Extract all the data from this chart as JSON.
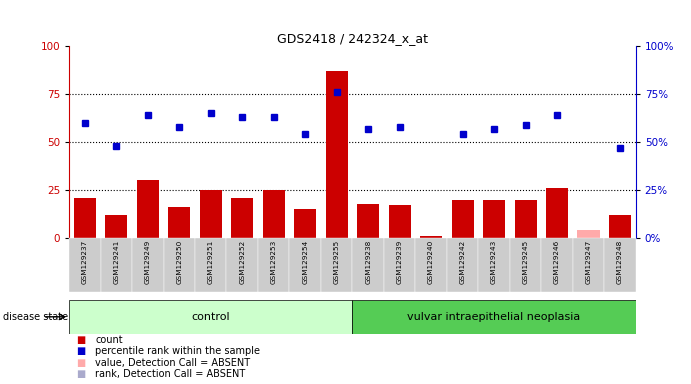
{
  "title": "GDS2418 / 242324_x_at",
  "samples": [
    "GSM129237",
    "GSM129241",
    "GSM129249",
    "GSM129250",
    "GSM129251",
    "GSM129252",
    "GSM129253",
    "GSM129254",
    "GSM129255",
    "GSM129238",
    "GSM129239",
    "GSM129240",
    "GSM129242",
    "GSM129243",
    "GSM129245",
    "GSM129246",
    "GSM129247",
    "GSM129248"
  ],
  "counts": [
    21,
    12,
    30,
    16,
    25,
    21,
    25,
    15,
    87,
    18,
    17,
    1,
    20,
    20,
    20,
    26,
    4,
    12
  ],
  "percentile_ranks": [
    60,
    48,
    64,
    58,
    65,
    63,
    63,
    54,
    76,
    57,
    58,
    null,
    54,
    57,
    59,
    64,
    null,
    47
  ],
  "absent_count_idx": [
    16
  ],
  "absent_rank_idx": [
    11,
    16
  ],
  "control_count": 9,
  "disease_count": 9,
  "control_label": "control",
  "disease_label": "vulvar intraepithelial neoplasia",
  "group_label": "disease state",
  "bar_color": "#cc0000",
  "dot_color": "#0000cc",
  "absent_bar_color": "#ffaaaa",
  "absent_dot_color": "#aaaacc",
  "bg_color_control": "#ccffcc",
  "bg_color_disease": "#55cc55",
  "tick_bg_color": "#cccccc",
  "ylim": [
    0,
    100
  ],
  "yticks": [
    0,
    25,
    50,
    75,
    100
  ],
  "grid_lines": [
    25,
    50,
    75
  ],
  "figsize": [
    6.91,
    3.84
  ],
  "dpi": 100
}
